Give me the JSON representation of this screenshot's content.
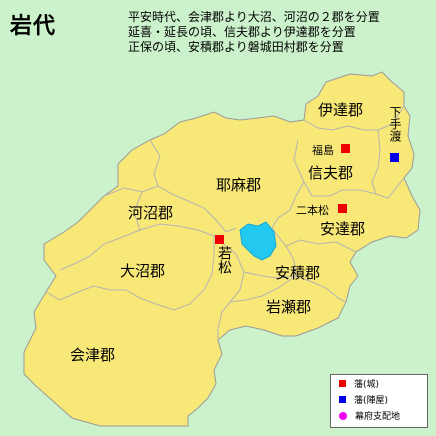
{
  "title": "岩代",
  "notes": [
    "平安時代、会津郡より大沼、河沼の２郡を分置",
    "延喜・延長の頃、信夫郡より伊達郡を分置",
    "正保の頃、安積郡より磐城田村郡を分置"
  ],
  "districts": {
    "date": "伊達郡",
    "shinobu": "信夫郡",
    "yama": "耶麻郡",
    "adachi": "安達郡",
    "kawanuma": "河沼郡",
    "onuma": "大沼郡",
    "asaka": "安積郡",
    "iwase": "岩瀬郡",
    "aizu": "会津郡"
  },
  "places": {
    "fukushima": "福島",
    "nihonmatsu": "二本松",
    "wakamatsu": "若松",
    "shimotedo": "下手渡"
  },
  "legend": {
    "han_castle": "藩(城)",
    "han_jinya": "藩(陣屋)",
    "bakufu": "幕府支配地"
  },
  "colors": {
    "background": "#ccf2cc",
    "land": "#f8e878",
    "border": "#b0b0b0",
    "lake": "#22c8f0",
    "castle": "#ee0000",
    "jinya": "#0000ee",
    "bakufu": "#ee00ee"
  }
}
